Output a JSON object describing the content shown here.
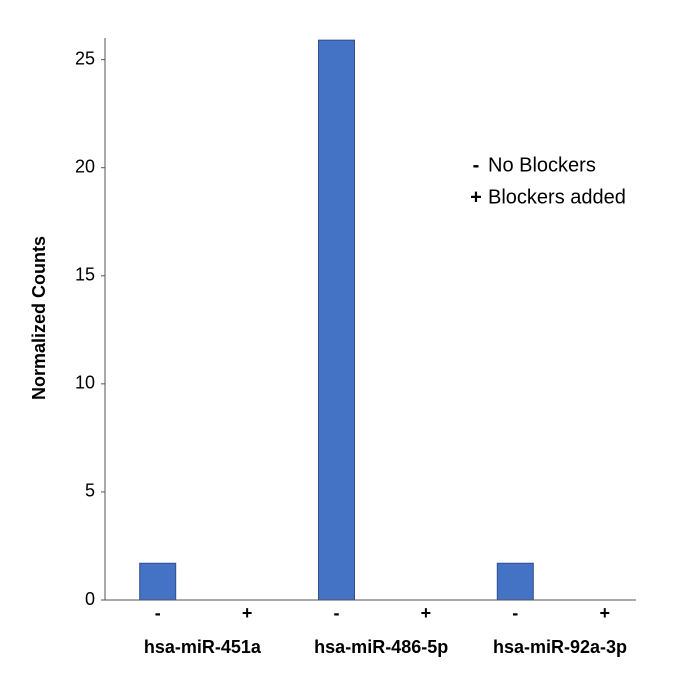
{
  "chart_data": {
    "type": "bar",
    "y_label": "Normalized Counts",
    "categories": [
      "-",
      "+",
      "-",
      "+",
      "-",
      "+"
    ],
    "groups": [
      "hsa-miR-451a",
      "hsa-miR-486-5p",
      "hsa-miR-92a-3p"
    ],
    "values": [
      1.7,
      0,
      25.9,
      0,
      1.7,
      0
    ],
    "color": "#4472c4",
    "ylim": [
      0,
      26
    ],
    "yticks": [
      0,
      5,
      10,
      15,
      20,
      25
    ],
    "legend": [
      {
        "symbol": "-",
        "text": "No Blockers"
      },
      {
        "symbol": "+",
        "text": "Blockers added"
      }
    ]
  }
}
